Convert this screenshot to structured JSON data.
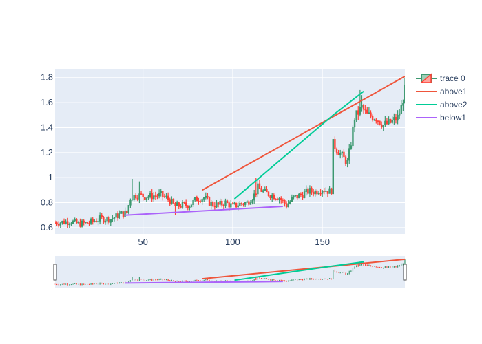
{
  "chart_data": {
    "type": "candlestick",
    "title": "",
    "xlabel": "",
    "ylabel": "",
    "xlim": [
      1,
      196
    ],
    "ylim": [
      0.55,
      1.87
    ],
    "x_ticks": [
      50,
      100,
      150
    ],
    "y_ticks": [
      0.6,
      0.8,
      1,
      1.2,
      1.4,
      1.6,
      1.8
    ],
    "x_tick_labels": [
      "50",
      "100",
      "150"
    ],
    "y_tick_labels": [
      "0.6",
      "0.8",
      "1",
      "1.2",
      "1.4",
      "1.6",
      "1.8"
    ],
    "grid": true,
    "legend_position": "top-right",
    "rangeslider": true,
    "colors": {
      "increasing": "#3d9970",
      "decreasing": "#ff4136",
      "above1": "#ef553b",
      "above2": "#00cc96",
      "below1": "#ab63fa",
      "plot_bg": "#e5ecf6",
      "grid": "#ffffff",
      "tick_text": "#2a3f5f"
    },
    "price_path": [
      [
        1,
        0.64
      ],
      [
        10,
        0.65
      ],
      [
        14,
        0.63
      ],
      [
        20,
        0.64
      ],
      [
        26,
        0.67
      ],
      [
        32,
        0.67
      ],
      [
        38,
        0.71
      ],
      [
        41,
        0.72
      ],
      [
        43,
        0.84
      ],
      [
        46,
        0.86
      ],
      [
        52,
        0.85
      ],
      [
        60,
        0.86
      ],
      [
        64,
        0.83
      ],
      [
        68,
        0.77
      ],
      [
        72,
        0.78
      ],
      [
        76,
        0.78
      ],
      [
        80,
        0.83
      ],
      [
        84,
        0.84
      ],
      [
        88,
        0.79
      ],
      [
        92,
        0.78
      ],
      [
        96,
        0.8
      ],
      [
        100,
        0.77
      ],
      [
        104,
        0.79
      ],
      [
        108,
        0.8
      ],
      [
        112,
        0.86
      ],
      [
        114,
        0.92
      ],
      [
        118,
        0.88
      ],
      [
        122,
        0.86
      ],
      [
        126,
        0.84
      ],
      [
        130,
        0.78
      ],
      [
        134,
        0.84
      ],
      [
        138,
        0.86
      ],
      [
        142,
        0.89
      ],
      [
        146,
        0.89
      ],
      [
        150,
        0.91
      ],
      [
        154,
        0.89
      ],
      [
        155,
        0.9
      ],
      [
        156,
        1.27
      ],
      [
        160,
        1.19
      ],
      [
        164,
        1.12
      ],
      [
        166,
        1.28
      ],
      [
        168,
        1.48
      ],
      [
        172,
        1.56
      ],
      [
        175,
        1.5
      ],
      [
        180,
        1.48
      ],
      [
        184,
        1.42
      ],
      [
        188,
        1.44
      ],
      [
        192,
        1.48
      ],
      [
        194,
        1.56
      ],
      [
        196,
        1.7
      ]
    ],
    "series": [
      {
        "name": "trace 0",
        "type": "candlestick",
        "length": 196
      },
      {
        "name": "above1",
        "type": "line",
        "x": [
          83,
          196
        ],
        "y": [
          0.9,
          1.81
        ]
      },
      {
        "name": "above2",
        "type": "line",
        "x": [
          101,
          156,
          173
        ],
        "y": [
          0.83,
          1.5,
          1.69
        ]
      },
      {
        "name": "below1",
        "type": "line",
        "x": [
          40,
          128
        ],
        "y": [
          0.7,
          0.77
        ]
      }
    ]
  }
}
